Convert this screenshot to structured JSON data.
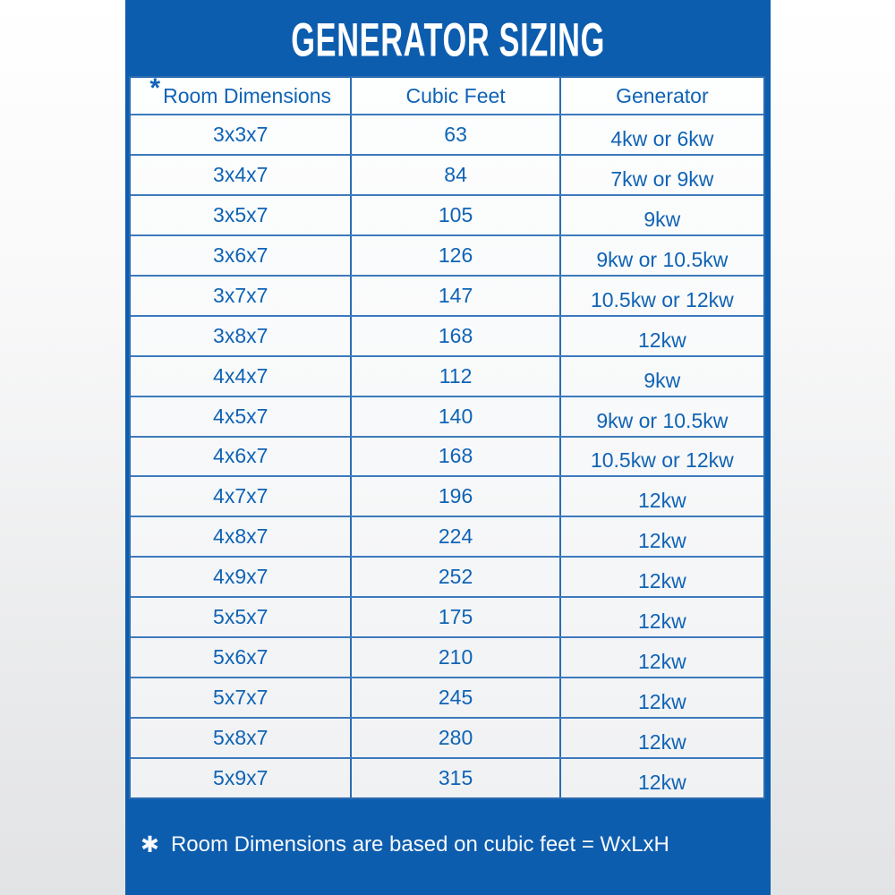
{
  "header": {
    "title": "GENERATOR SIZING"
  },
  "table": {
    "marker": "*",
    "columns": [
      "Room Dimensions",
      "Cubic Feet",
      "Generator"
    ],
    "rows": [
      {
        "dimensions": "3x3x7",
        "cubic_feet": "63",
        "generator": "4kw or 6kw"
      },
      {
        "dimensions": "3x4x7",
        "cubic_feet": "84",
        "generator": "7kw or 9kw"
      },
      {
        "dimensions": "3x5x7",
        "cubic_feet": "105",
        "generator": "9kw"
      },
      {
        "dimensions": "3x6x7",
        "cubic_feet": "126",
        "generator": "9kw or 10.5kw"
      },
      {
        "dimensions": "3x7x7",
        "cubic_feet": "147",
        "generator": "10.5kw or 12kw"
      },
      {
        "dimensions": "3x8x7",
        "cubic_feet": "168",
        "generator": "12kw"
      },
      {
        "dimensions": "4x4x7",
        "cubic_feet": "112",
        "generator": "9kw"
      },
      {
        "dimensions": "4x5x7",
        "cubic_feet": "140",
        "generator": "9kw or 10.5kw"
      },
      {
        "dimensions": "4x6x7",
        "cubic_feet": "168",
        "generator": "10.5kw or 12kw"
      },
      {
        "dimensions": "4x7x7",
        "cubic_feet": "196",
        "generator": "12kw"
      },
      {
        "dimensions": "4x8x7",
        "cubic_feet": "224",
        "generator": "12kw"
      },
      {
        "dimensions": "4x9x7",
        "cubic_feet": "252",
        "generator": "12kw"
      },
      {
        "dimensions": "5x5x7",
        "cubic_feet": "175",
        "generator": "12kw"
      },
      {
        "dimensions": "5x6x7",
        "cubic_feet": "210",
        "generator": "12kw"
      },
      {
        "dimensions": "5x7x7",
        "cubic_feet": "245",
        "generator": "12kw"
      },
      {
        "dimensions": "5x8x7",
        "cubic_feet": "280",
        "generator": "12kw"
      },
      {
        "dimensions": "5x9x7",
        "cubic_feet": "315",
        "generator": "12kw"
      }
    ]
  },
  "footer": {
    "marker": "✱",
    "text": "Room Dimensions are based on cubic feet = WxLxH"
  },
  "colors": {
    "panel_blue": "#0d5dae",
    "text_blue": "#0f63b5",
    "line_blue": "#3d7abc",
    "line_strong": "#2b6cb2",
    "title_text": "#ffffff"
  }
}
